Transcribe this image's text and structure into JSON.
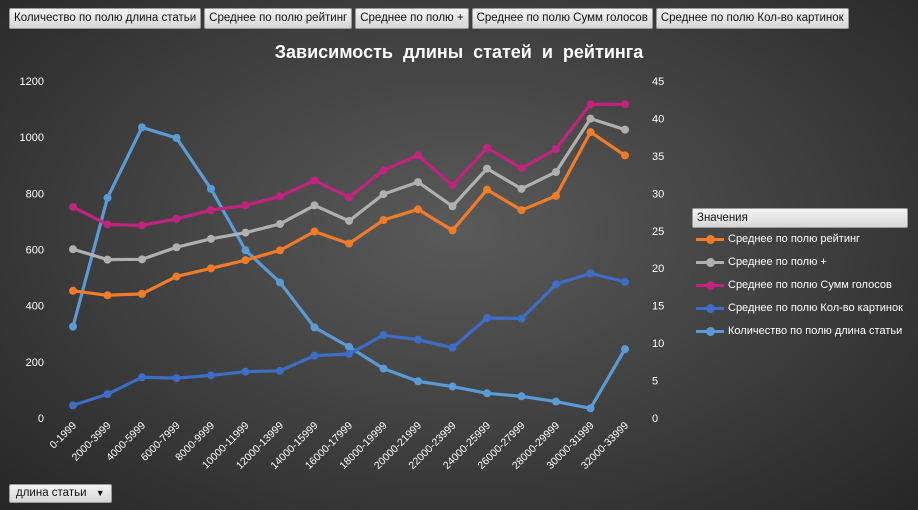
{
  "field_buttons": [
    "Количество по полю длина статьи",
    "Среднее по полю рейтинг",
    "Среднее по полю +",
    "Среднее по полю Сумм голосов",
    "Среднее по полю Кол-во картинок"
  ],
  "legend_title": "Значения",
  "axis_dropdown": {
    "label": "длина статьи",
    "icon": "dropdown-arrow-icon"
  },
  "chart_data": {
    "type": "line",
    "title": "Зависимость  длины  статей  и  рейтинга",
    "categories": [
      "0-1999",
      "2000-3999",
      "4000-5999",
      "6000-7999",
      "8000-9999",
      "10000-11999",
      "12000-13999",
      "14000-15999",
      "16000-17999",
      "18000-19999",
      "20000-21999",
      "22000-23999",
      "24000-25999",
      "26000-27999",
      "28000-29999",
      "30000-31999",
      "32000-33999"
    ],
    "y_left": {
      "min": 0,
      "max": 1200,
      "ticks": [
        0,
        200,
        400,
        600,
        800,
        1000,
        1200
      ]
    },
    "y_right": {
      "min": 0,
      "max": 45,
      "ticks": [
        0,
        5,
        10,
        15,
        20,
        25,
        30,
        35,
        40,
        45
      ]
    },
    "grid": false,
    "legend_position": "right",
    "series": [
      {
        "name": "Среднее по полю рейтинг",
        "axis": "left",
        "color": "#f07c2a",
        "values": [
          453,
          437,
          442,
          504,
          533,
          562,
          597,
          664,
          621,
          705,
          743,
          668,
          813,
          740,
          791,
          1018,
          935
        ]
      },
      {
        "name": "Среднее по полю +",
        "axis": "left",
        "color": "#b0b0b0",
        "values": [
          601,
          564,
          565,
          608,
          638,
          660,
          691,
          757,
          702,
          797,
          840,
          754,
          888,
          816,
          876,
          1066,
          1027
        ]
      },
      {
        "name": "Среднее по полю Сумм голосов",
        "axis": "left",
        "color": "#c2237f",
        "values": [
          751,
          689,
          686,
          709,
          740,
          757,
          789,
          846,
          786,
          882,
          935,
          829,
          962,
          889,
          958,
          1117,
          1117
        ]
      },
      {
        "name": "Среднее по полю Кол-во картинок",
        "axis": "left",
        "color": "#3f6cc4",
        "values": [
          45,
          85,
          145,
          142,
          152,
          165,
          168,
          222,
          228,
          295,
          279,
          250,
          356,
          354,
          476,
          515,
          485
        ]
      },
      {
        "name": "Количество по полю длина статьи",
        "axis": "right",
        "color": "#5b9bd5",
        "values": [
          12.2,
          29.4,
          38.8,
          37.4,
          30.6,
          22.4,
          18.1,
          12.1,
          9.5,
          6.6,
          4.9,
          4.2,
          3.3,
          2.9,
          2.2,
          1.3,
          9.2
        ]
      }
    ]
  }
}
